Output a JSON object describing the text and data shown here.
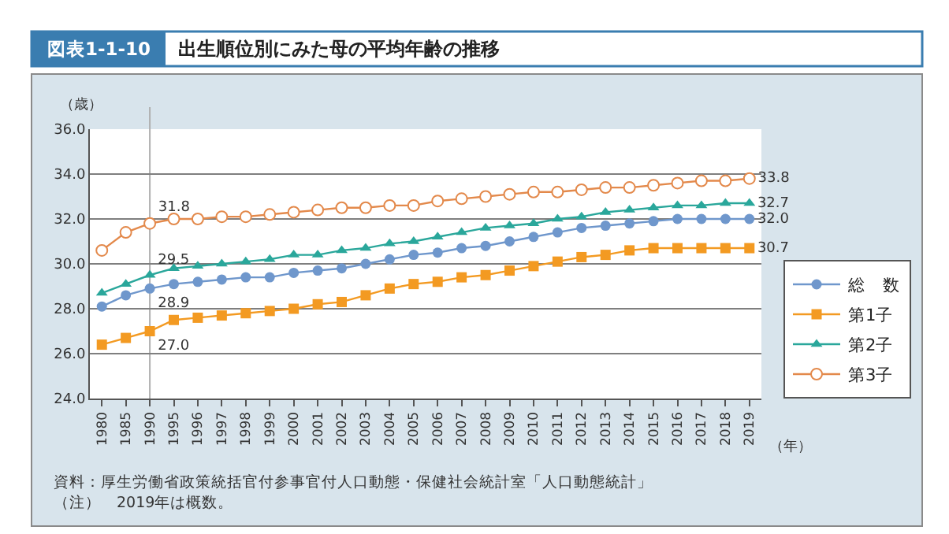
{
  "chart_data": {
    "type": "line",
    "title": "出生順位別にみた母の平均年齢の推移",
    "xlabel": "（年）",
    "ylabel": "（歳）",
    "annotations": [
      "図表1-1-10",
      "資料：厚生労働省政策統括官付参事官付人口動態・保健社会統計室「人口動態統計」",
      "（注）　2019年は概数。"
    ],
    "categories": [
      "1980",
      "1985",
      "1990",
      "1995",
      "1996",
      "1997",
      "1998",
      "1999",
      "2000",
      "2001",
      "2002",
      "2003",
      "2004",
      "2005",
      "2006",
      "2007",
      "2008",
      "2009",
      "2010",
      "2011",
      "2012",
      "2013",
      "2014",
      "2015",
      "2016",
      "2017",
      "2018",
      "2019"
    ],
    "series": [
      {
        "name": "総　数",
        "color": "#6f97cc",
        "marker": "circle",
        "values": [
          28.1,
          28.6,
          28.9,
          29.1,
          29.2,
          29.3,
          29.4,
          29.4,
          29.6,
          29.7,
          29.8,
          30.0,
          30.2,
          30.4,
          30.5,
          30.7,
          30.8,
          31.0,
          31.2,
          31.4,
          31.6,
          31.7,
          31.8,
          31.9,
          32.0,
          32.0,
          32.0,
          32.0
        ],
        "value_labels": [
          null,
          null,
          "28.9",
          null,
          null,
          null,
          null,
          null,
          null,
          null,
          null,
          null,
          null,
          null,
          null,
          null,
          null,
          null,
          null,
          null,
          null,
          null,
          null,
          null,
          null,
          null,
          null,
          "32.0"
        ]
      },
      {
        "name": "第1子",
        "color": "#f39a22",
        "marker": "square",
        "values": [
          26.4,
          26.7,
          27.0,
          27.5,
          27.6,
          27.7,
          27.8,
          27.9,
          28.0,
          28.2,
          28.3,
          28.6,
          28.9,
          29.1,
          29.2,
          29.4,
          29.5,
          29.7,
          29.9,
          30.1,
          30.3,
          30.4,
          30.6,
          30.7,
          30.7,
          30.7,
          30.7,
          30.7
        ],
        "value_labels": [
          null,
          null,
          "27.0",
          null,
          null,
          null,
          null,
          null,
          null,
          null,
          null,
          null,
          null,
          null,
          null,
          null,
          null,
          null,
          null,
          null,
          null,
          null,
          null,
          null,
          null,
          null,
          null,
          "30.7"
        ]
      },
      {
        "name": "第2子",
        "color": "#2aa79b",
        "marker": "triangle",
        "values": [
          28.7,
          29.1,
          29.5,
          29.8,
          29.9,
          30.0,
          30.1,
          30.2,
          30.4,
          30.4,
          30.6,
          30.7,
          30.9,
          31.0,
          31.2,
          31.4,
          31.6,
          31.7,
          31.8,
          32.0,
          32.1,
          32.3,
          32.4,
          32.5,
          32.6,
          32.6,
          32.7,
          32.7
        ],
        "value_labels": [
          null,
          null,
          "29.5",
          null,
          null,
          null,
          null,
          null,
          null,
          null,
          null,
          null,
          null,
          null,
          null,
          null,
          null,
          null,
          null,
          null,
          null,
          null,
          null,
          null,
          null,
          null,
          null,
          "32.7"
        ]
      },
      {
        "name": "第3子",
        "color": "#e3894b",
        "marker": "circle-open",
        "values": [
          30.6,
          31.4,
          31.8,
          32.0,
          32.0,
          32.1,
          32.1,
          32.2,
          32.3,
          32.4,
          32.5,
          32.5,
          32.6,
          32.6,
          32.8,
          32.9,
          33.0,
          33.1,
          33.2,
          33.2,
          33.3,
          33.4,
          33.4,
          33.5,
          33.6,
          33.7,
          33.7,
          33.8
        ],
        "value_labels": [
          null,
          null,
          "31.8",
          null,
          null,
          null,
          null,
          null,
          null,
          null,
          null,
          null,
          null,
          null,
          null,
          null,
          null,
          null,
          null,
          null,
          null,
          null,
          null,
          null,
          null,
          null,
          null,
          "33.8"
        ]
      }
    ],
    "ylim": [
      24,
      36
    ],
    "yticks": [
      {
        "value": 24,
        "label": "24.0"
      },
      {
        "value": 26,
        "label": "26.0"
      },
      {
        "value": 28,
        "label": "28.0"
      },
      {
        "value": 30,
        "label": "30.0"
      },
      {
        "value": 32,
        "label": "32.0"
      },
      {
        "value": 34,
        "label": "34.0"
      },
      {
        "value": 36,
        "label": "36.0"
      }
    ],
    "ref_lines": [
      {
        "axis": "x",
        "value": "1990",
        "color": "#b0b0b0"
      }
    ],
    "grid": "y",
    "legend": "right"
  }
}
